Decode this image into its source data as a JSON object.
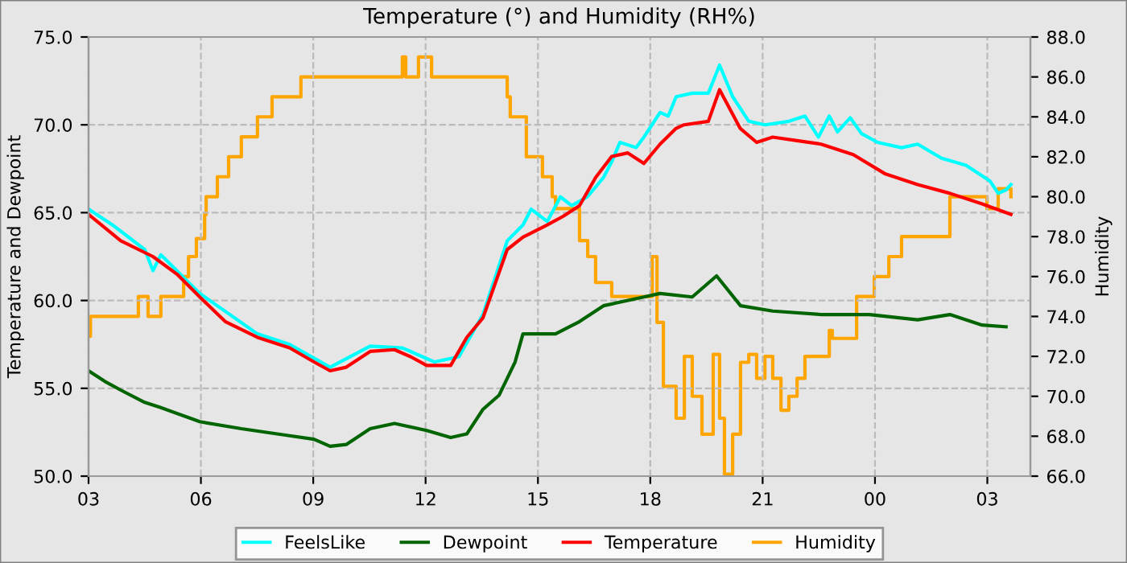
{
  "chart_data": {
    "type": "line",
    "title": "Temperature (°) and Humidity (RH%)",
    "ylabel": "Temperature and Dewpoint",
    "y2label": "Humidity",
    "xlim": [
      3,
      28.15
    ],
    "xticks": [
      {
        "value": 3,
        "label": "03"
      },
      {
        "value": 6,
        "label": "06"
      },
      {
        "value": 9,
        "label": "09"
      },
      {
        "value": 12,
        "label": "12"
      },
      {
        "value": 15,
        "label": "15"
      },
      {
        "value": 18,
        "label": "18"
      },
      {
        "value": 21,
        "label": "21"
      },
      {
        "value": 24,
        "label": "00"
      },
      {
        "value": 27,
        "label": "03"
      }
    ],
    "ylim": [
      50,
      75
    ],
    "yticks": [
      {
        "value": 50,
        "label": "50.0"
      },
      {
        "value": 55,
        "label": "55.0"
      },
      {
        "value": 60,
        "label": "60.0"
      },
      {
        "value": 65,
        "label": "65.0"
      },
      {
        "value": 70,
        "label": "70.0"
      },
      {
        "value": 75,
        "label": "75.0"
      }
    ],
    "y2lim": [
      66,
      88
    ],
    "y2ticks": [
      {
        "value": 66,
        "label": "66.0"
      },
      {
        "value": 68,
        "label": "68.0"
      },
      {
        "value": 70,
        "label": "70.0"
      },
      {
        "value": 72,
        "label": "72.0"
      },
      {
        "value": 74,
        "label": "74.0"
      },
      {
        "value": 76,
        "label": "76.0"
      },
      {
        "value": 78,
        "label": "78.0"
      },
      {
        "value": 80,
        "label": "80.0"
      },
      {
        "value": 82,
        "label": "82.0"
      },
      {
        "value": 84,
        "label": "84.0"
      },
      {
        "value": 86,
        "label": "86.0"
      },
      {
        "value": 88,
        "label": "88.0"
      }
    ],
    "grid": true,
    "legend": "bottom",
    "line_style": "solid",
    "series": [
      {
        "name": "FeelsLike",
        "color": "#00ffff",
        "x": [
          3.0,
          3.64,
          4.5,
          4.72,
          4.93,
          5.97,
          7.51,
          8.37,
          9.45,
          10.52,
          11.38,
          12.24,
          12.89,
          13.53,
          14.18,
          14.6,
          14.82,
          15.25,
          15.6,
          15.9,
          16.32,
          16.75,
          16.97,
          17.19,
          17.62,
          17.83,
          18.26,
          18.48,
          18.69,
          19.12,
          19.55,
          19.85,
          20.2,
          20.63,
          21.06,
          21.7,
          22.13,
          22.49,
          22.78,
          23.0,
          23.34,
          23.64,
          24.07,
          24.71,
          25.14,
          25.78,
          26.43,
          27.07,
          27.29,
          27.5,
          27.63
        ],
        "values": [
          65.2,
          64.3,
          62.9,
          61.7,
          62.6,
          60.4,
          58.1,
          57.5,
          56.2,
          57.4,
          57.3,
          56.5,
          56.8,
          59.2,
          63.4,
          64.3,
          65.2,
          64.5,
          65.9,
          65.4,
          65.9,
          67.0,
          67.9,
          69.0,
          68.7,
          69.3,
          70.7,
          70.5,
          71.6,
          71.8,
          71.8,
          73.4,
          71.6,
          70.2,
          70.0,
          70.2,
          70.5,
          69.3,
          70.5,
          69.6,
          70.4,
          69.5,
          69.0,
          68.7,
          68.9,
          68.1,
          67.7,
          66.8,
          66.1,
          66.3,
          66.6
        ]
      },
      {
        "name": "Dewpoint",
        "color": "#006400",
        "x": [
          3.0,
          3.43,
          3.86,
          4.5,
          4.93,
          5.97,
          7.08,
          8.37,
          9.02,
          9.45,
          9.88,
          10.52,
          11.17,
          12.03,
          12.67,
          13.1,
          13.53,
          13.96,
          14.39,
          14.6,
          15.47,
          16.11,
          16.75,
          17.83,
          18.26,
          19.12,
          19.77,
          20.41,
          21.27,
          22.56,
          23.85,
          25.14,
          26.0,
          26.86,
          27.5
        ],
        "values": [
          56.0,
          55.4,
          54.9,
          54.2,
          53.9,
          53.1,
          52.7,
          52.3,
          52.1,
          51.7,
          51.8,
          52.7,
          53.0,
          52.6,
          52.2,
          52.4,
          53.8,
          54.6,
          56.5,
          58.1,
          58.1,
          58.8,
          59.7,
          60.2,
          60.4,
          60.2,
          61.4,
          59.7,
          59.4,
          59.2,
          59.2,
          58.9,
          59.2,
          58.6,
          58.5
        ]
      },
      {
        "name": "Temperature",
        "color": "#ff0000",
        "x": [
          3.0,
          3.86,
          4.72,
          5.36,
          5.97,
          6.65,
          7.51,
          8.37,
          9.02,
          9.45,
          9.88,
          10.52,
          11.17,
          11.6,
          12.03,
          12.67,
          13.1,
          13.53,
          14.18,
          14.6,
          15.25,
          15.68,
          16.11,
          16.54,
          16.97,
          17.4,
          17.83,
          18.26,
          18.69,
          18.9,
          19.55,
          19.85,
          20.4,
          20.84,
          21.27,
          21.92,
          22.56,
          23.42,
          24.28,
          25.14,
          26.0,
          26.86,
          27.63
        ],
        "values": [
          64.9,
          63.4,
          62.5,
          61.5,
          60.2,
          58.8,
          57.9,
          57.3,
          56.5,
          56.0,
          56.2,
          57.1,
          57.2,
          56.8,
          56.3,
          56.3,
          57.9,
          59.0,
          62.9,
          63.6,
          64.3,
          64.8,
          65.4,
          67.0,
          68.2,
          68.4,
          67.8,
          68.9,
          69.8,
          70.0,
          70.2,
          72.0,
          69.8,
          69.0,
          69.3,
          69.1,
          68.9,
          68.3,
          67.2,
          66.6,
          66.1,
          65.5,
          64.9
        ]
      },
      {
        "name": "Humidity",
        "color": "#ffa500",
        "type": "step",
        "axis": "y2",
        "x": [
          3.0,
          3.05,
          4.33,
          4.59,
          4.93,
          5.54,
          5.67,
          5.88,
          6.1,
          6.14,
          6.44,
          6.74,
          7.08,
          7.51,
          7.9,
          8.67,
          11.38,
          11.47,
          11.81,
          12.16,
          14.18,
          14.26,
          14.69,
          15.12,
          15.38,
          15.47,
          16.11,
          16.33,
          16.54,
          16.97,
          18.05,
          18.18,
          18.35,
          18.69,
          18.91,
          19.12,
          19.38,
          19.68,
          19.85,
          19.98,
          20.2,
          20.41,
          20.63,
          20.84,
          21.06,
          21.27,
          21.49,
          21.7,
          21.92,
          22.13,
          22.78,
          22.86,
          23.51,
          23.98,
          24.37,
          24.71,
          26.0,
          26.99,
          27.29,
          27.63
        ],
        "values": [
          73.0,
          74.0,
          75.0,
          74.0,
          75.0,
          76.0,
          77.0,
          77.9,
          79.1,
          80.0,
          81.0,
          82.0,
          83.0,
          84.0,
          85.0,
          86.0,
          87.0,
          86.0,
          87.0,
          86.0,
          85.0,
          84.0,
          82.0,
          81.0,
          80.0,
          79.4,
          77.8,
          77.0,
          75.7,
          75.0,
          77.0,
          73.7,
          70.5,
          68.9,
          72.0,
          70.0,
          68.1,
          72.1,
          68.9,
          66.1,
          68.1,
          71.7,
          72.1,
          70.9,
          72.0,
          70.9,
          69.3,
          70.0,
          70.9,
          72.0,
          73.3,
          72.9,
          75.0,
          76.0,
          77.0,
          78.0,
          80.0,
          79.4,
          80.4,
          80.0
        ]
      }
    ]
  }
}
